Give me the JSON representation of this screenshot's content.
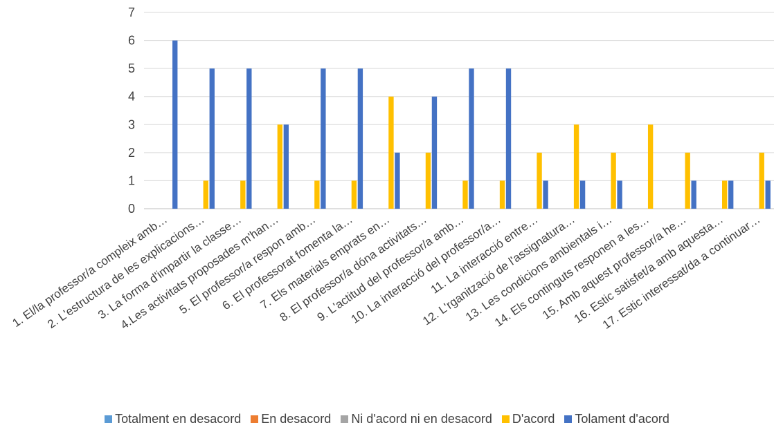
{
  "chart_data": {
    "type": "bar",
    "categories": [
      "1. El/la professor/a compleix amb…",
      "2. L'estructura de les explicacions…",
      "3. La forma d'impartir la classe…",
      "4.Les activitats proposades m'han…",
      "5. El professor/a respon amb…",
      "6. El professorat fomenta la…",
      "7. Els materials emprats en…",
      "8. El professor/a dóna activitats…",
      "9. L'actitud del professor/a amb…",
      "10. La interacció del professor/a…",
      "11. La interacció entre…",
      "12. L'rganització de l'assignatura…",
      "13. Les condicions ambientals i…",
      "14. Els continguts responen a les…",
      "15. Amb aquest professor/a he…",
      "16. Estic satisfet/a amb aquesta…",
      "17. Estic interessat/da a continuar…"
    ],
    "series": [
      {
        "name": "Totalment en desacord",
        "color": "#5B9BD5",
        "values": [
          0,
          0,
          0,
          0,
          0,
          0,
          0,
          0,
          0,
          0,
          0,
          0,
          0,
          0,
          0,
          0,
          0
        ]
      },
      {
        "name": "En desacord",
        "color": "#ED7D31",
        "values": [
          0,
          0,
          0,
          0,
          0,
          0,
          0,
          0,
          0,
          0,
          0,
          0,
          0,
          0,
          0,
          0,
          0
        ]
      },
      {
        "name": "Ni d'acord ni en desacord",
        "color": "#A5A5A5",
        "values": [
          0,
          0,
          0,
          0,
          0,
          0,
          0,
          0,
          0,
          0,
          0,
          0,
          0,
          0,
          0,
          0,
          0
        ]
      },
      {
        "name": "D'acord",
        "color": "#FFC000",
        "values": [
          0,
          1,
          1,
          3,
          1,
          1,
          4,
          2,
          1,
          1,
          2,
          3,
          2,
          3,
          2,
          1,
          2
        ]
      },
      {
        "name": "Tolament d'acord",
        "color": "#4472C4",
        "values": [
          6,
          5,
          5,
          3,
          5,
          5,
          2,
          4,
          5,
          5,
          1,
          1,
          1,
          0,
          1,
          1,
          1
        ]
      }
    ],
    "y_ticks": [
      "0",
      "1",
      "2",
      "3",
      "4",
      "5",
      "6",
      "7"
    ],
    "ylim": [
      0,
      7
    ],
    "grid": true,
    "legend_position": "bottom"
  }
}
